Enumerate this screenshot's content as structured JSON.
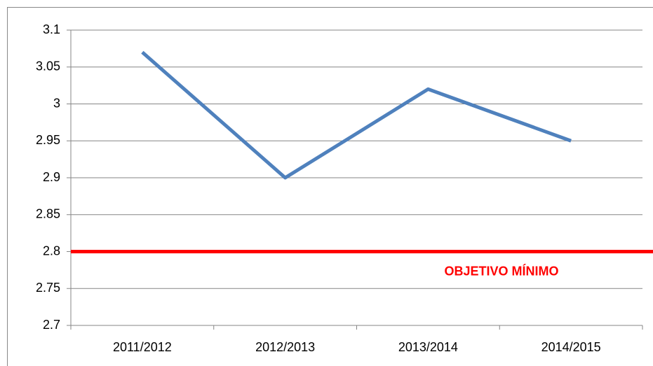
{
  "chart_data": {
    "type": "line",
    "categories": [
      "2011/2012",
      "2012/2013",
      "2013/2014",
      "2014/2015"
    ],
    "series": [
      {
        "name": null,
        "color": "#4f81bd",
        "values": [
          3.07,
          2.9,
          3.02,
          2.95
        ]
      }
    ],
    "ylim": [
      2.7,
      3.1
    ],
    "yticks": [
      2.7,
      2.75,
      2.8,
      2.85,
      2.9,
      2.95,
      3,
      3.05,
      3.1
    ],
    "grid": true,
    "reference_line": {
      "value": 2.8,
      "label": "OBJETIVO MÍNIMO",
      "color": "#ff0000"
    }
  }
}
